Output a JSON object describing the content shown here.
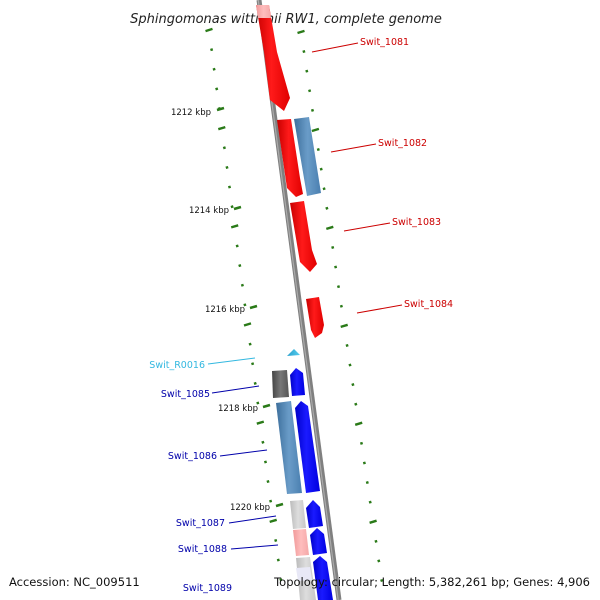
{
  "title": "Sphingomonas wittichii RW1, complete genome",
  "footer": {
    "accession": "Accession: NC_009511",
    "topology": "Topology: circular; Length: 5,382,261 bp; Genes: 4,906"
  },
  "colors": {
    "backbone": "#888888",
    "tick": "#2a7a18",
    "forward_gene": "#ff0000",
    "reverse_gene": "#0000ff",
    "rrna_gene": "#33b8e0",
    "strand_blue": "#4a7fb0",
    "label_red": "#cc0000",
    "label_blue": "#0000aa",
    "label_cyan": "#33b8e0"
  },
  "scale": {
    "ticks": [
      {
        "label": "1212 kbp"
      },
      {
        "label": "1214 kbp"
      },
      {
        "label": "1216 kbp"
      },
      {
        "label": "1218 kbp"
      },
      {
        "label": "1220 kbp"
      }
    ]
  },
  "genes": [
    {
      "name": "Swit_1081",
      "strand": "forward",
      "type": "CDS"
    },
    {
      "name": "Swit_1082",
      "strand": "forward",
      "type": "CDS"
    },
    {
      "name": "Swit_1083",
      "strand": "forward",
      "type": "CDS"
    },
    {
      "name": "Swit_1084",
      "strand": "forward",
      "type": "CDS"
    },
    {
      "name": "Swit_R0016",
      "strand": "reverse",
      "type": "rRNA"
    },
    {
      "name": "Swit_1085",
      "strand": "reverse",
      "type": "CDS"
    },
    {
      "name": "Swit_1086",
      "strand": "reverse",
      "type": "CDS"
    },
    {
      "name": "Swit_1087",
      "strand": "reverse",
      "type": "CDS"
    },
    {
      "name": "Swit_1088",
      "strand": "reverse",
      "type": "CDS"
    },
    {
      "name": "Swit_1089",
      "strand": "reverse",
      "type": "CDS"
    }
  ]
}
